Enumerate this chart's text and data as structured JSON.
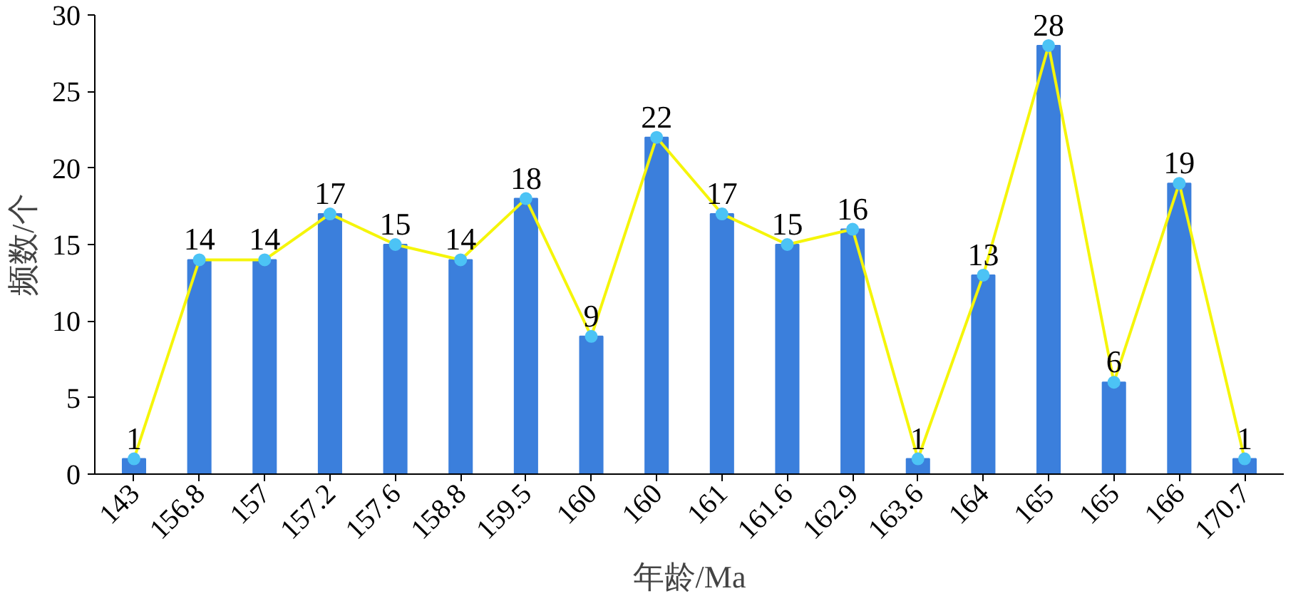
{
  "chart_data": {
    "type": "bar",
    "xlabel": "年龄/Ma",
    "ylabel": "频数/个",
    "categories": [
      "143",
      "156.8",
      "157",
      "157.2",
      "157.6",
      "158.8",
      "159.5",
      "160",
      "160",
      "161",
      "161.6",
      "162.9",
      "163.6",
      "164",
      "165",
      "165",
      "166",
      "170.7"
    ],
    "series": [
      {
        "color": "#3b7fdc",
        "values": [
          1,
          14,
          14,
          17,
          15,
          14,
          18,
          9,
          22,
          17,
          15,
          16,
          1,
          13,
          28,
          6,
          19,
          1
        ]
      },
      {
        "type": "line",
        "color": "#f5f50a",
        "colors": [
          "#4cc3f5",
          "#4cc3f5",
          "#4cc3f5",
          "#4cc3f5",
          "#4cc3f5",
          "#4cc3f5",
          "#4cc3f5",
          "#4cc3f5",
          "#4cc3f5",
          "#4cc3f5",
          "#4cc3f5",
          "#4cc3f5",
          "#4cc3f5",
          "#4cc3f5",
          "#4cc3f5",
          "#4cc3f5",
          "#4cc3f5",
          "#4cc3f5"
        ],
        "values": [
          1,
          14,
          14,
          17,
          15,
          14,
          18,
          9,
          22,
          17,
          15,
          16,
          1,
          13,
          28,
          6,
          19,
          1
        ],
        "value_labels": [
          "1",
          "14",
          "14",
          "17",
          "15",
          "14",
          "18",
          "9",
          "22",
          "17",
          "15",
          "16",
          "1",
          "13",
          "28",
          "6",
          "19",
          "1"
        ]
      }
    ],
    "ylim": [
      0,
      30
    ],
    "yticks": [
      0,
      5,
      10,
      15,
      20,
      25,
      30
    ],
    "grid": false,
    "marker": "circle"
  }
}
